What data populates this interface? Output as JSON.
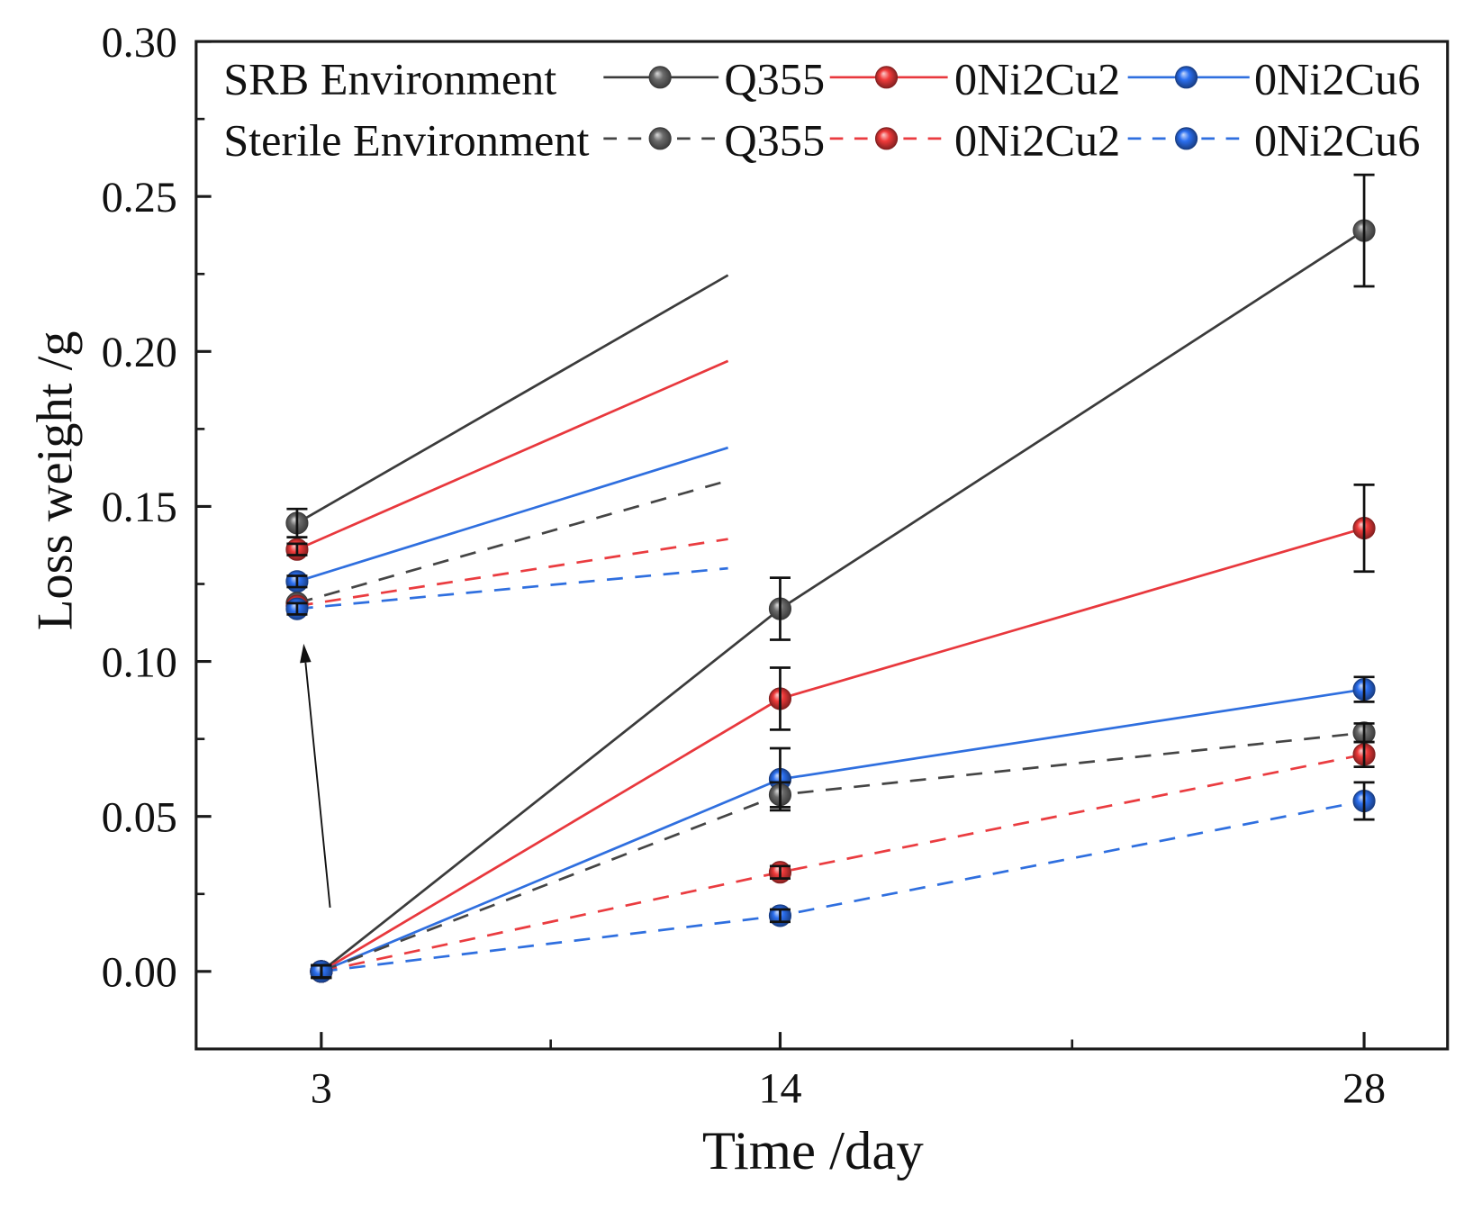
{
  "chart_data": {
    "type": "line",
    "xlabel": "Time /day",
    "ylabel": "Loss weight /g",
    "x": [
      3,
      14,
      28
    ],
    "xlim": [
      0,
      30
    ],
    "ylim": [
      -0.025,
      0.3
    ],
    "xticks": [
      "3",
      "14",
      "28"
    ],
    "yticks": [
      "0.00",
      "0.05",
      "0.10",
      "0.15",
      "0.20",
      "0.25",
      "0.30"
    ],
    "grid": false,
    "legend_position": "top",
    "groups": [
      "SRB Environment",
      "Sterile Environment"
    ],
    "series": [
      {
        "name": "Q355",
        "group": 0,
        "dashed": false,
        "color": "#3b3b3b",
        "marker_color": "#6b6b6b",
        "values": [
          0.0,
          0.117,
          0.239
        ],
        "error": [
          0.002,
          0.01,
          0.018
        ]
      },
      {
        "name": "0Ni2Cu2",
        "group": 0,
        "dashed": false,
        "color": "#e8383d",
        "marker_color": "#f03a3a",
        "values": [
          0.0,
          0.088,
          0.143
        ],
        "error": [
          0.002,
          0.01,
          0.014
        ]
      },
      {
        "name": "0Ni2Cu6",
        "group": 0,
        "dashed": false,
        "color": "#2f6fdf",
        "marker_color": "#2b6ff0",
        "values": [
          0.0,
          0.062,
          0.091
        ],
        "error": [
          0.002,
          0.01,
          0.004
        ]
      },
      {
        "name": "Q355",
        "group": 1,
        "dashed": true,
        "color": "#454545",
        "marker_color": "#6b6b6b",
        "values": [
          0.0,
          0.057,
          0.077
        ],
        "error": [
          0.002,
          0.004,
          0.003
        ]
      },
      {
        "name": "0Ni2Cu2",
        "group": 1,
        "dashed": true,
        "color": "#ea3c40",
        "marker_color": "#f03a3a",
        "values": [
          0.0,
          0.032,
          0.07
        ],
        "error": [
          0.002,
          0.002,
          0.004
        ]
      },
      {
        "name": "0Ni2Cu6",
        "group": 1,
        "dashed": true,
        "color": "#2f6fdf",
        "marker_color": "#2b6ff0",
        "values": [
          0.0,
          0.018,
          0.055
        ],
        "error": [
          0.002,
          0.002,
          0.006
        ]
      }
    ]
  }
}
